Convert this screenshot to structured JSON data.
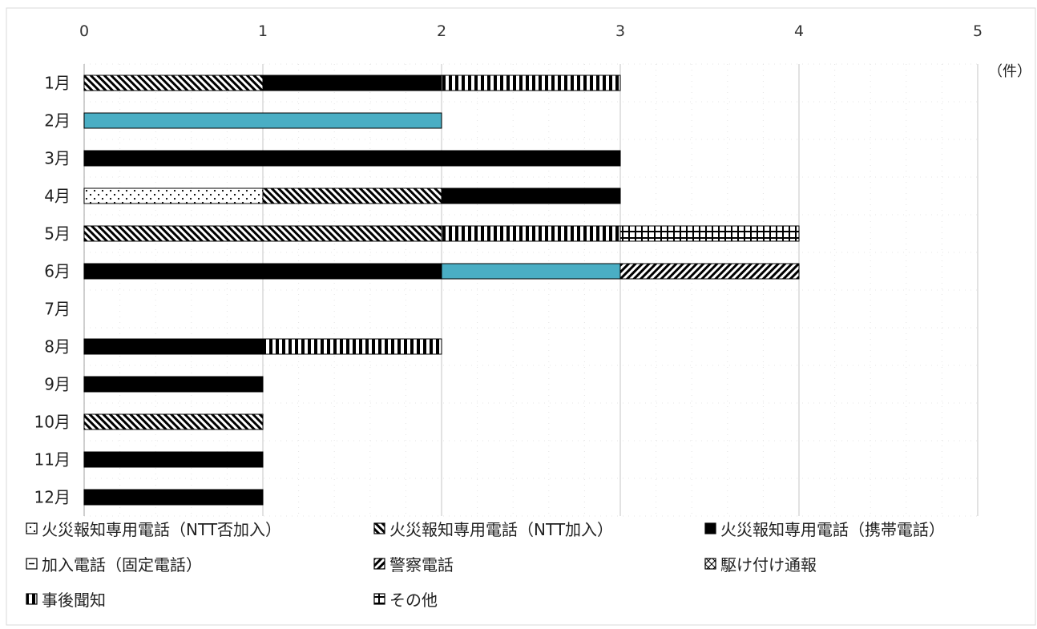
{
  "chart_data": {
    "type": "bar",
    "orientation": "horizontal",
    "stacked": true,
    "unit_label": "（件）",
    "xlim": [
      0,
      5
    ],
    "x_ticks": [
      "0",
      "1",
      "2",
      "3",
      "4",
      "5"
    ],
    "grid": true,
    "legend_position": "bottom",
    "categories": [
      "1月",
      "2月",
      "3月",
      "4月",
      "5月",
      "6月",
      "7月",
      "8月",
      "9月",
      "10月",
      "11月",
      "12月"
    ],
    "series": [
      {
        "name": "火災報知専用電話（NTT否加入）",
        "pattern": "dots",
        "color": "#000000",
        "values": [
          0,
          0,
          0,
          1,
          0,
          0,
          0,
          0,
          0,
          0,
          0,
          0
        ]
      },
      {
        "name": "火災報知専用電話（NTT加入）",
        "pattern": "diag",
        "color": "#000000",
        "values": [
          1,
          0,
          0,
          1,
          2,
          0,
          0,
          0,
          0,
          1,
          0,
          0
        ]
      },
      {
        "name": "火災報知専用電話（携帯電話）",
        "pattern": "solid",
        "color": "#000000",
        "values": [
          1,
          0,
          3,
          1,
          0,
          2,
          0,
          1,
          1,
          0,
          1,
          1
        ]
      },
      {
        "name": "加入電話（固定電話）",
        "pattern": "solid",
        "color": "#4aaec4",
        "values": [
          0,
          2,
          0,
          0,
          0,
          1,
          0,
          0,
          0,
          0,
          0,
          0
        ]
      },
      {
        "name": "警察電話",
        "pattern": "hatch",
        "color": "#000000",
        "values": [
          0,
          0,
          0,
          0,
          0,
          1,
          0,
          0,
          0,
          0,
          0,
          0
        ]
      },
      {
        "name": "駆け付け通報",
        "pattern": "cross",
        "color": "#000000",
        "values": [
          0,
          0,
          0,
          0,
          0,
          0,
          0,
          0,
          0,
          0,
          0,
          0
        ]
      },
      {
        "name": "事後聞知",
        "pattern": "vert",
        "color": "#000000",
        "values": [
          1,
          0,
          0,
          0,
          1,
          0,
          0,
          1,
          0,
          0,
          0,
          0
        ]
      },
      {
        "name": "その他",
        "pattern": "grid",
        "color": "#000000",
        "values": [
          0,
          0,
          0,
          0,
          1,
          0,
          0,
          0,
          0,
          0,
          0,
          0
        ]
      }
    ]
  }
}
